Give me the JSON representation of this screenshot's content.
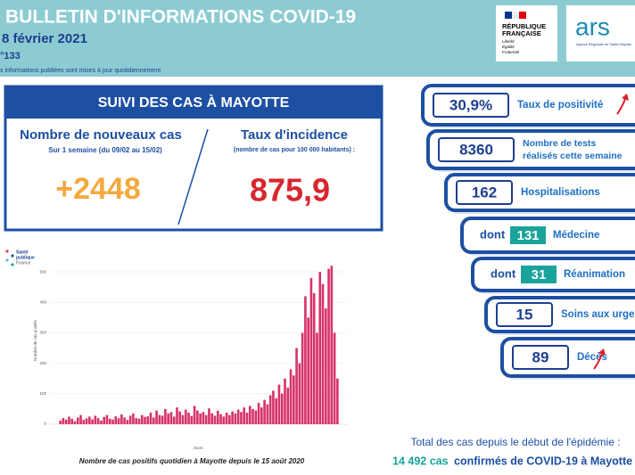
{
  "header": {
    "title": "BULLETIN D'INFORMATIONS COVID-19",
    "date": "8 février 2021",
    "number": "°133",
    "note": "s informations publiées sont mises à jour quotidiennement"
  },
  "logos": {
    "republique": [
      "RÉPUBLIQUE",
      "FRANÇAISE"
    ],
    "motto": [
      "Liberté",
      "Égalité",
      "Fraternité"
    ],
    "ars": "ars",
    "ars_sub": "Agence Régionale de Santé Mayotte"
  },
  "panel": {
    "title": "SUIVI DES CAS À MAYOTTE",
    "left": {
      "title": "Nombre de nouveaux cas",
      "subtitle": "Sur 1 semaine (du 09/02 au 15/02)",
      "value": "+2448"
    },
    "right": {
      "title": "Taux d'incidence",
      "subtitle": "(nombre de cas pour 100 000 habitants) :",
      "value": "875,9"
    }
  },
  "stats": [
    {
      "value": "30,9%",
      "label": [
        "Taux de positivité"
      ]
    },
    {
      "value": "8360",
      "label": [
        "Nombre de tests",
        "réalisés cette semaine"
      ]
    },
    {
      "value": "162",
      "label": [
        "Hospitalisations"
      ]
    },
    {
      "prefix": "dont",
      "value": "131",
      "label": [
        "Médecine"
      ]
    },
    {
      "prefix": "dont",
      "value": "31",
      "label": [
        "Réanimation"
      ]
    },
    {
      "value": "15",
      "label": [
        "Soins aux urgences"
      ]
    },
    {
      "value": "89",
      "label": [
        "Décès"
      ]
    }
  ],
  "total": {
    "line1": "Total des cas depuis le début de l'épidémie :",
    "count": "14 492 cas",
    "rest": "confirmés de COVID-19 à Mayotte"
  },
  "chart_data": {
    "type": "bar",
    "source": [
      "Santé",
      "publique",
      "France"
    ],
    "ylabel": "Nombre de cas positifs",
    "xlabel": "Jours",
    "caption": "Nombre de cas positifs quotidien à Mayotte depuis le 15 août 2020",
    "color": "#d6336c",
    "ylim": [
      0,
      550
    ],
    "yticks": [
      0,
      100,
      200,
      300,
      400,
      500
    ],
    "values": [
      12,
      20,
      15,
      25,
      18,
      10,
      22,
      30,
      14,
      19,
      25,
      16,
      28,
      20,
      12,
      24,
      30,
      18,
      15,
      26,
      20,
      32,
      22,
      14,
      28,
      35,
      20,
      18,
      30,
      24,
      26,
      38,
      22,
      45,
      30,
      28,
      50,
      35,
      40,
      25,
      55,
      42,
      30,
      48,
      38,
      27,
      60,
      45,
      35,
      40,
      30,
      52,
      36,
      28,
      44,
      33,
      25,
      38,
      30,
      42,
      35,
      48,
      40,
      55,
      38,
      60,
      50,
      45,
      70,
      55,
      80,
      65,
      95,
      110,
      85,
      130,
      100,
      150,
      120,
      180,
      160,
      250,
      200,
      300,
      420,
      350,
      480,
      430,
      300,
      500,
      460,
      380,
      510,
      520,
      300,
      150
    ]
  }
}
